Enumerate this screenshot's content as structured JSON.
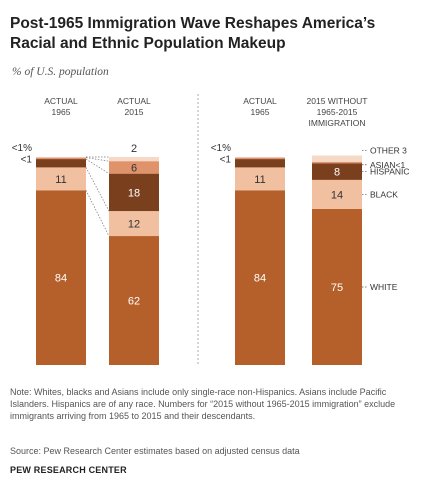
{
  "title": "Post-1965 Immigration Wave Reshapes America’s Racial and Ethnic Population Makeup",
  "subtitle": "% of U.S. population",
  "note": "Note: Whites, blacks and Asians include only single-race non-Hispanics. Asians include Pacific Islanders. Hispanics are of any race. Numbers for “2015 without 1965-2015 immigration” exclude immigrants arriving from 1965 to 2015 and their descendants.",
  "source": "Source: Pew Research Center estimates based on adjusted census data",
  "brand": "PEW RESEARCH CENTER",
  "colors": {
    "white": "#b5602a",
    "black": "#f1c0a1",
    "hispanic": "#7a3f1c",
    "asian": "#e0936a",
    "other": "#f5d9c6",
    "divider": "#999999"
  },
  "chart_data": {
    "type": "bar",
    "stacked": true,
    "categories": [
      "ACTUAL 1965",
      "ACTUAL 2015",
      "ACTUAL 1965",
      "2015 WITHOUT 1965-2015 IMMIGRATION"
    ],
    "series": [
      {
        "name": "WHITE",
        "values": [
          84,
          62,
          84,
          75
        ],
        "labels": [
          "84",
          "62",
          "84",
          "75"
        ]
      },
      {
        "name": "BLACK",
        "values": [
          11,
          12,
          11,
          14
        ],
        "labels": [
          "11",
          "12",
          "11",
          "14"
        ]
      },
      {
        "name": "HISPANIC",
        "values": [
          4,
          18,
          4,
          8
        ],
        "labels": [
          "4",
          "18",
          "4",
          "8"
        ]
      },
      {
        "name": "ASIAN",
        "values": [
          0.7,
          6,
          0.7,
          0.7
        ],
        "labels": [
          "<1",
          "6",
          "<1",
          "<1"
        ]
      },
      {
        "name": "OTHER",
        "values": [
          0.3,
          2,
          0.3,
          3
        ],
        "labels": [
          "<1%",
          "2",
          "<1%",
          "3"
        ]
      }
    ],
    "legend": [
      "OTHER",
      "ASIAN",
      "HISPANIC",
      "BLACK",
      "WHITE"
    ],
    "ylim": [
      0,
      100
    ]
  }
}
